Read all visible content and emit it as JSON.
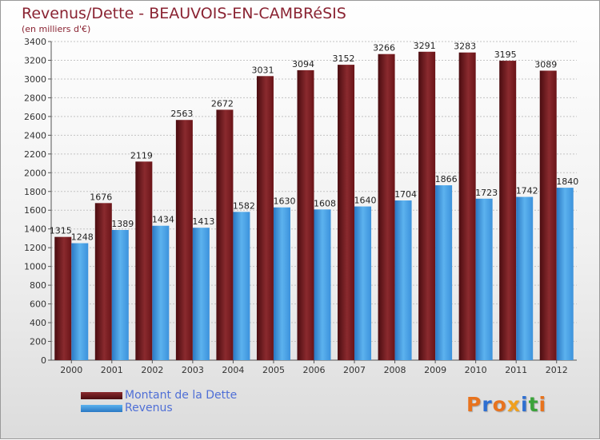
{
  "header": {
    "title": "Revenus/Dette - BEAUVOIS-EN-CAMBRéSIS",
    "subtitle": "(en milliers d'€)"
  },
  "logo": {
    "text": "Proxiti",
    "colors": [
      "#e8731e",
      "#2e6fd1",
      "#e8731e",
      "#f0a01e",
      "#2e6fd1",
      "#3aa33a",
      "#e8731e"
    ]
  },
  "colors": {
    "dette": "#7a1e22",
    "revenus": "#3f9be0"
  },
  "chart_data": {
    "type": "bar",
    "title": "Revenus/Dette - BEAUVOIS-EN-CAMBRéSIS",
    "ylabel": "(en milliers d'€)",
    "ylim": [
      0,
      3400
    ],
    "yticks": [
      0,
      200,
      400,
      600,
      800,
      1000,
      1200,
      1400,
      1600,
      1800,
      2000,
      2200,
      2400,
      2600,
      2800,
      3000,
      3200,
      3400
    ],
    "grid": true,
    "legend": "bottom-left",
    "categories": [
      "2000",
      "2001",
      "2002",
      "2003",
      "2004",
      "2005",
      "2006",
      "2007",
      "2008",
      "2009",
      "2010",
      "2011",
      "2012"
    ],
    "series": [
      {
        "name": "Montant de la Dette",
        "values": [
          1315,
          1676,
          2119,
          2563,
          2672,
          3031,
          3094,
          3152,
          3266,
          3291,
          3283,
          3195,
          3089
        ]
      },
      {
        "name": "Revenus",
        "values": [
          1248,
          1389,
          1434,
          1413,
          1582,
          1630,
          1608,
          1640,
          1704,
          1866,
          1723,
          1742,
          1840
        ]
      }
    ]
  }
}
